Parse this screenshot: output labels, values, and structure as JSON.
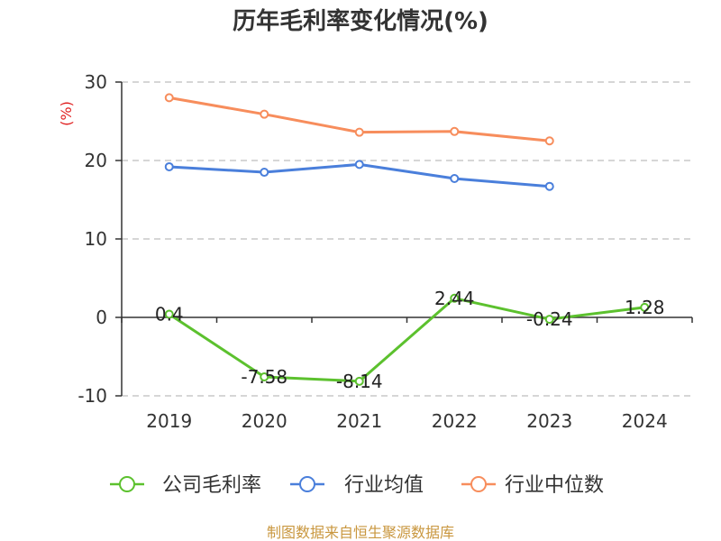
{
  "chart_data": {
    "type": "line",
    "title": "历年毛利率变化情况(%)",
    "ylabel": "(%)",
    "categories": [
      "2019",
      "2020",
      "2021",
      "2022",
      "2023",
      "2024"
    ],
    "yticks": [
      30,
      20,
      10,
      0,
      -10
    ],
    "ylim": [
      -10,
      30
    ],
    "grid": true,
    "legend": "bottom",
    "series": [
      {
        "name": "公司毛利率",
        "color": "#5cc12e",
        "data_labels": true,
        "values": [
          0.4,
          -7.58,
          -8.14,
          2.44,
          -0.24,
          1.28
        ]
      },
      {
        "name": "行业均值",
        "color": "#4a7fdb",
        "data_labels": false,
        "values": [
          19.2,
          18.5,
          19.5,
          17.7,
          16.7,
          null
        ]
      },
      {
        "name": "行业中位数",
        "color": "#f78d5c",
        "data_labels": false,
        "values": [
          28.0,
          25.9,
          23.6,
          23.7,
          22.5,
          null
        ]
      }
    ]
  },
  "source_note": "制图数据来自恒生聚源数据库"
}
